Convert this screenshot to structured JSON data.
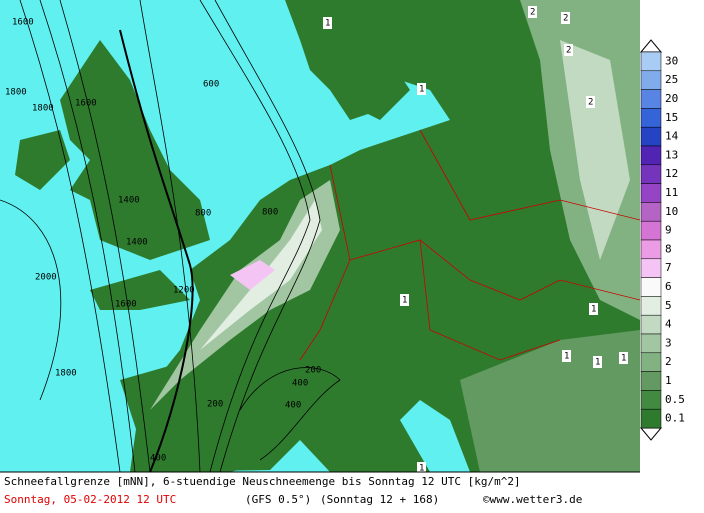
{
  "legend": {
    "levels": [
      30,
      25,
      20,
      15,
      14,
      13,
      12,
      11,
      10,
      9,
      8,
      7,
      6,
      5,
      4,
      3,
      2,
      1,
      0.5,
      0.1
    ],
    "colors": [
      "#a8ccf4",
      "#80acec",
      "#5884e4",
      "#3464d8",
      "#2444c4",
      "#5224b4",
      "#7434bc",
      "#9444c4",
      "#b464c4",
      "#d474d4",
      "#ec9ce4",
      "#f4c4f4",
      "#fafafa",
      "#e2eee2",
      "#c2dac2",
      "#a2c6a2",
      "#82b282",
      "#629a62",
      "#428a42",
      "#2e7b2e"
    ]
  },
  "contour_labels": [
    "1600",
    "1800",
    "1800",
    "1600",
    "600",
    "1400",
    "1400",
    "800",
    "800",
    "2000",
    "1600",
    "1200",
    "1800",
    "400",
    "200",
    "200",
    "400",
    "400"
  ],
  "map_numbers": [
    1,
    2,
    2,
    2,
    1,
    2,
    1,
    1,
    1,
    1,
    1,
    1
  ],
  "footer": {
    "line1": "Schneefallgrenze [mNN], 6-stuendige Neuschneemenge bis Sonntag 12 UTC [kg/m^2]",
    "date": "Sonntag, 05-02-2012  12 UTC",
    "model": "(GFS 0.5°)",
    "run": "(Sonntag 12 + 168)",
    "site": "©www.wetter3.de"
  }
}
